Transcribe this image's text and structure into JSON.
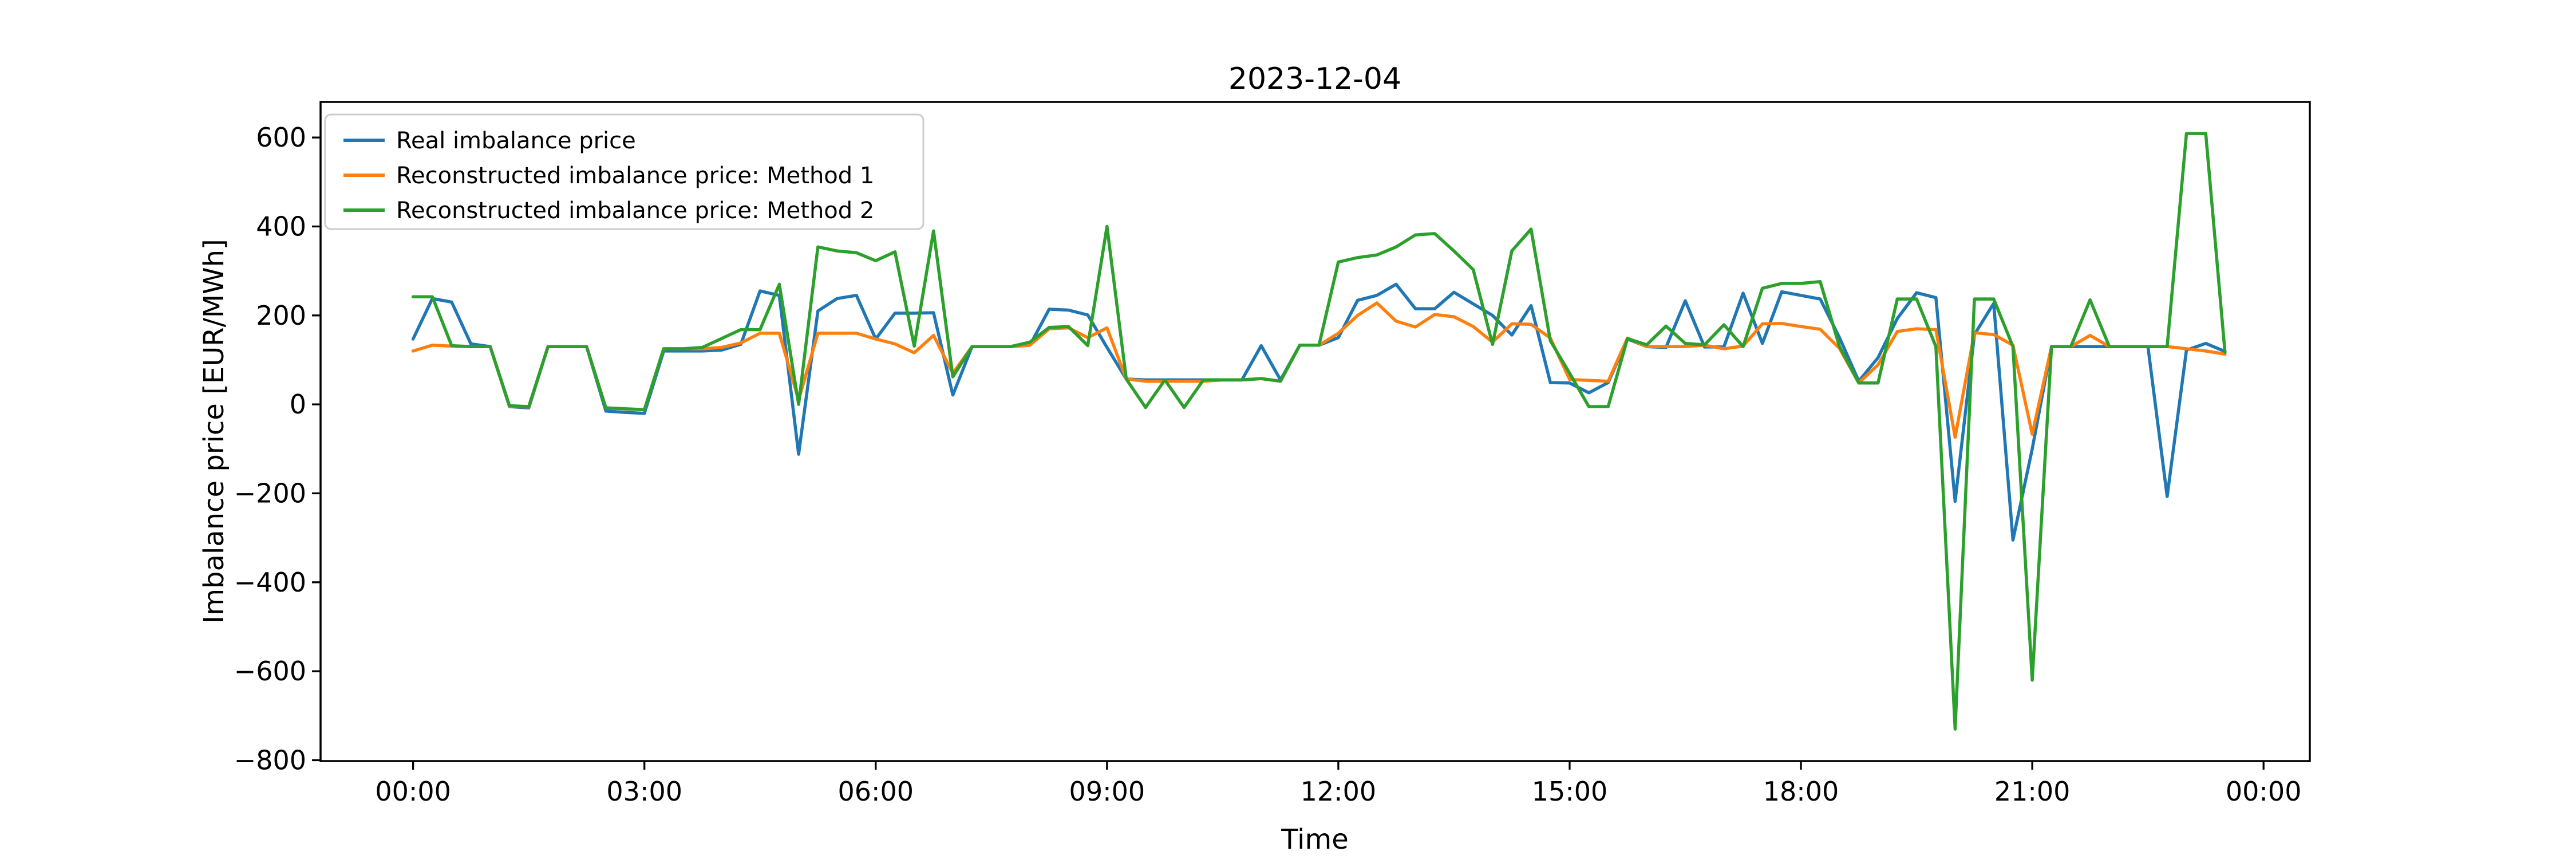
{
  "figure": {
    "title": "2023-12-04",
    "xlabel": "Time",
    "ylabel": "Imbalance price [EUR/MWh]"
  },
  "chart_data": {
    "type": "line",
    "title": "2023-12-04",
    "xlabel": "Time",
    "ylabel": "Imbalance price [EUR/MWh]",
    "grid": false,
    "legend_position": "upper left",
    "x_tick_labels": [
      "00:00",
      "03:00",
      "06:00",
      "09:00",
      "12:00",
      "15:00",
      "18:00",
      "21:00",
      "00:00"
    ],
    "x_tick_hours": [
      0,
      3,
      6,
      9,
      12,
      15,
      18,
      21,
      24
    ],
    "y_ticks": [
      600,
      400,
      200,
      0,
      -200,
      -400,
      -600,
      -800
    ],
    "ylim": [
      -802,
      680
    ],
    "xlim_hours": [
      -1.2,
      24.6
    ],
    "x_start": "00:00",
    "x_step_minutes": 15,
    "x_times": [
      "00:00",
      "00:15",
      "00:30",
      "00:45",
      "01:00",
      "01:15",
      "01:30",
      "01:45",
      "02:00",
      "02:15",
      "02:30",
      "02:45",
      "03:00",
      "03:15",
      "03:30",
      "03:45",
      "04:00",
      "04:15",
      "04:30",
      "04:45",
      "05:00",
      "05:15",
      "05:30",
      "05:45",
      "06:00",
      "06:15",
      "06:30",
      "06:45",
      "07:00",
      "07:15",
      "07:30",
      "07:45",
      "08:00",
      "08:15",
      "08:30",
      "08:45",
      "09:00",
      "09:15",
      "09:30",
      "09:45",
      "10:00",
      "10:15",
      "10:30",
      "10:45",
      "11:00",
      "11:15",
      "11:30",
      "11:45",
      "12:00",
      "12:15",
      "12:30",
      "12:45",
      "13:00",
      "13:15",
      "13:30",
      "13:45",
      "14:00",
      "14:15",
      "14:30",
      "14:45",
      "15:00",
      "15:15",
      "15:30",
      "15:45",
      "16:00",
      "16:15",
      "16:30",
      "16:45",
      "17:00",
      "17:15",
      "17:30",
      "17:45",
      "18:00",
      "18:15",
      "18:30",
      "18:45",
      "19:00",
      "19:15",
      "19:30",
      "19:45",
      "20:00",
      "20:15",
      "20:30",
      "20:45",
      "21:00",
      "21:15",
      "21:30",
      "21:45",
      "22:00",
      "22:15",
      "22:30",
      "22:45",
      "23:00",
      "23:15",
      "23:30"
    ],
    "series": [
      {
        "name": "Real imbalance price",
        "color": "#1f77b4",
        "values": [
          147,
          238,
          230,
          136,
          130,
          -5,
          -8,
          130,
          130,
          130,
          -15,
          -18,
          -20,
          120,
          120,
          120,
          122,
          135,
          255,
          245,
          -112,
          210,
          238,
          245,
          147,
          205,
          205,
          206,
          21,
          130,
          130,
          130,
          133,
          214,
          212,
          201,
          128,
          57,
          55,
          55,
          55,
          55,
          55,
          55,
          132,
          55,
          133,
          133,
          150,
          234,
          245,
          270,
          215,
          215,
          252,
          226,
          200,
          156,
          222,
          49,
          48,
          26,
          49,
          147,
          130,
          128,
          233,
          129,
          129,
          250,
          137,
          253,
          245,
          237,
          150,
          52,
          105,
          193,
          251,
          240,
          -218,
          157,
          227,
          -305,
          -100,
          130,
          130,
          130,
          130,
          130,
          130,
          -207,
          122,
          137,
          119
        ]
      },
      {
        "name": "Reconstructed imbalance price: Method 1",
        "color": "#ff7f0e",
        "values": [
          120,
          133,
          131,
          130,
          130,
          -4,
          -6,
          130,
          130,
          130,
          -8,
          -10,
          -12,
          125,
          125,
          125,
          128,
          138,
          160,
          160,
          10,
          160,
          160,
          160,
          147,
          136,
          116,
          155,
          70,
          130,
          130,
          130,
          133,
          170,
          172,
          150,
          172,
          57,
          52,
          52,
          52,
          52,
          55,
          55,
          58,
          52,
          133,
          133,
          160,
          200,
          228,
          187,
          174,
          202,
          197,
          175,
          140,
          181,
          180,
          149,
          56,
          54,
          52,
          149,
          130,
          130,
          130,
          133,
          125,
          131,
          181,
          182,
          175,
          169,
          126,
          48,
          89,
          164,
          170,
          168,
          -74,
          161,
          157,
          133,
          -67,
          130,
          130,
          155,
          130,
          130,
          130,
          130,
          125,
          120,
          113
        ]
      },
      {
        "name": "Reconstructed imbalance price: Method 2",
        "color": "#2ca02c",
        "values": [
          242,
          242,
          132,
          130,
          130,
          -3,
          -5,
          130,
          130,
          130,
          -8,
          -10,
          -12,
          125,
          125,
          128,
          148,
          168,
          168,
          270,
          0,
          354,
          345,
          341,
          323,
          343,
          131,
          390,
          62,
          130,
          130,
          130,
          140,
          173,
          175,
          132,
          400,
          57,
          -7,
          55,
          -7,
          55,
          55,
          55,
          58,
          52,
          133,
          133,
          320,
          330,
          336,
          354,
          381,
          384,
          345,
          303,
          135,
          345,
          394,
          143,
          70,
          -5,
          -5,
          148,
          134,
          176,
          137,
          134,
          179,
          130,
          261,
          272,
          272,
          276,
          130,
          48,
          48,
          237,
          237,
          130,
          -730,
          237,
          237,
          130,
          -620,
          130,
          130,
          235,
          130,
          130,
          130,
          130,
          609,
          609,
          117
        ]
      }
    ]
  }
}
